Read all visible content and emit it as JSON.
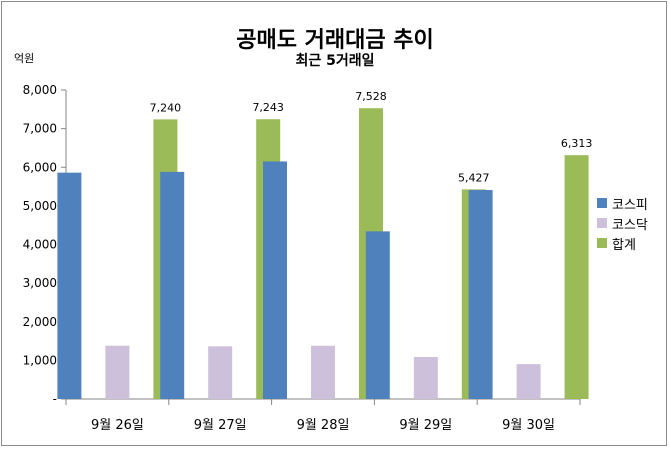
{
  "chart_data": {
    "type": "bar",
    "title": "공매도 거래대금 추이",
    "subtitle": "최근 5거래일",
    "ylabel": "억원",
    "ylim": [
      0,
      8000
    ],
    "yticks": [
      0,
      1000,
      2000,
      3000,
      4000,
      5000,
      6000,
      7000,
      8000
    ],
    "ytick_labels": [
      "-",
      "1,000",
      "2,000",
      "3,000",
      "4,000",
      "5,000",
      "6,000",
      "7,000",
      "8,000"
    ],
    "categories": [
      "9월 26일",
      "9월 27일",
      "9월 28일",
      "9월 29일",
      "9월 30일"
    ],
    "series": [
      {
        "name": "코스피",
        "color": "#4f81bd",
        "values": [
          5860,
          5880,
          6150,
          4340,
          5410
        ]
      },
      {
        "name": "코스닥",
        "color": "#ccc0da",
        "values": [
          1380,
          1363,
          1378,
          1087,
          903
        ]
      },
      {
        "name": "합계",
        "color": "#9bbb59",
        "values": [
          7240,
          7243,
          7528,
          5427,
          6313
        ],
        "data_labels": [
          "7,240",
          "7,243",
          "7,528",
          "5,427",
          "6,313"
        ]
      }
    ],
    "legend_position": "right",
    "grid": false
  }
}
